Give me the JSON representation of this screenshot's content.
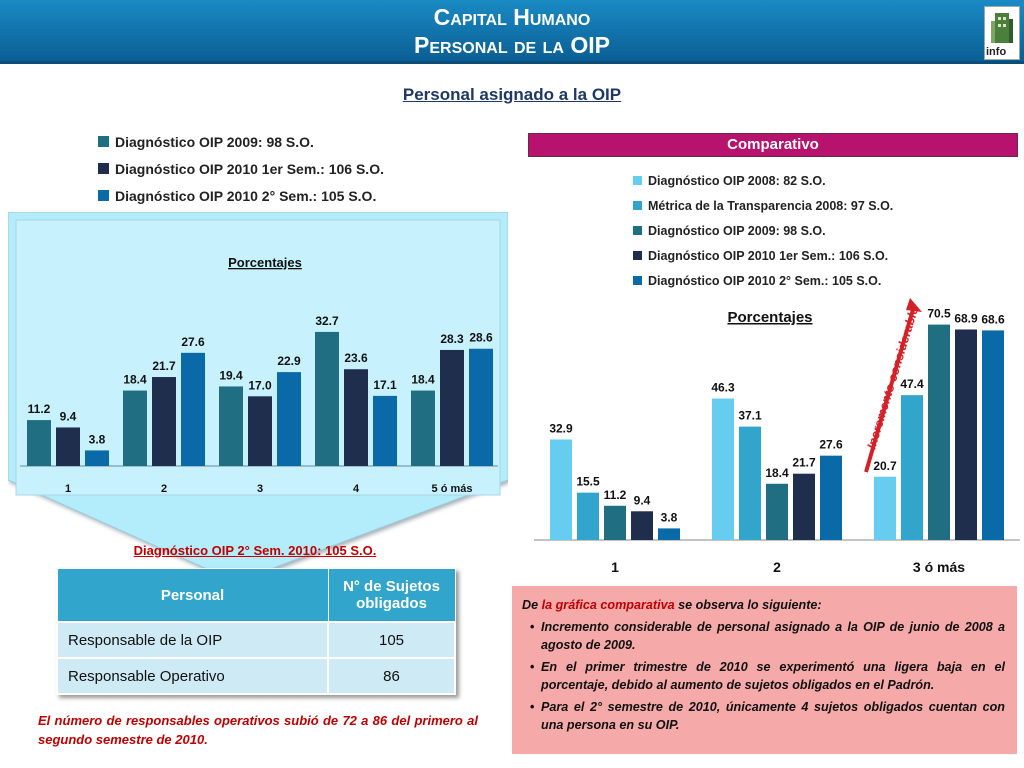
{
  "header": {
    "title_line1": "Capital Humano",
    "title_line2": "Personal de la OIP",
    "logo_text": "info"
  },
  "subtitle": "Personal asignado a la OIP",
  "colors": {
    "c2008": "#66ccf0",
    "metrica2008": "#31a5cc",
    "c2009": "#1f6e82",
    "c2010s1": "#1f2e4d",
    "c2010s2": "#0a6aa8",
    "panel": "#b3ecfb",
    "comparativo": "#b7126e",
    "arrow": "#d42027"
  },
  "left_legend": [
    {
      "label": "Diagnóstico OIP 2009: 98 S.O.",
      "color": "#1f6e82"
    },
    {
      "label": "Diagnóstico OIP 2010 1er Sem.: 106 S.O.",
      "color": "#1f2e4d"
    },
    {
      "label": "Diagnóstico OIP 2010 2° Sem.: 105 S.O.",
      "color": "#0a6aa8"
    }
  ],
  "comparativo_label": "Comparativo",
  "right_legend": [
    {
      "label": "Diagnóstico OIP 2008: 82 S.O.",
      "color": "#66ccf0"
    },
    {
      "label": "Métrica de la Transparencia 2008: 97 S.O.",
      "color": "#31a5cc"
    },
    {
      "label": "Diagnóstico OIP 2009: 98 S.O.",
      "color": "#1f6e82"
    },
    {
      "label": "Diagnóstico OIP 2010 1er Sem.: 106 S.O.",
      "color": "#1f2e4d"
    },
    {
      "label": "Diagnóstico OIP 2010 2° Sem.: 105 S.O.",
      "color": "#0a6aa8"
    }
  ],
  "chart_data": [
    {
      "type": "bar",
      "title": "Porcentajes",
      "categories": [
        "1",
        "2",
        "3",
        "4",
        "5 ó más"
      ],
      "series": [
        {
          "name": "Diagnóstico OIP 2009: 98 S.O.",
          "color": "#1f6e82",
          "values": [
            11.2,
            18.4,
            19.4,
            32.7,
            18.4
          ]
        },
        {
          "name": "Diagnóstico OIP 2010 1er Sem.: 106 S.O.",
          "color": "#1f2e4d",
          "values": [
            9.4,
            21.7,
            17.0,
            23.6,
            28.3
          ]
        },
        {
          "name": "Diagnóstico OIP 2010 2° Sem.: 105 S.O.",
          "color": "#0a6aa8",
          "values": [
            3.8,
            27.6,
            22.9,
            17.1,
            28.6
          ]
        }
      ],
      "ylim": [
        0,
        40
      ],
      "legend": "top"
    },
    {
      "type": "bar",
      "title": "Porcentajes",
      "categories": [
        "1",
        "2",
        "3 ó más"
      ],
      "series": [
        {
          "name": "Diagnóstico OIP 2008: 82 S.O.",
          "color": "#66ccf0",
          "values": [
            32.9,
            46.3,
            20.7
          ]
        },
        {
          "name": "Métrica de la Transparencia 2008: 97 S.O.",
          "color": "#31a5cc",
          "values": [
            15.5,
            37.1,
            47.4
          ]
        },
        {
          "name": "Diagnóstico OIP 2009: 98 S.O.",
          "color": "#1f6e82",
          "values": [
            11.2,
            18.4,
            70.5
          ]
        },
        {
          "name": "Diagnóstico OIP 2010 1er Sem.: 106 S.O.",
          "color": "#1f2e4d",
          "values": [
            9.4,
            21.7,
            68.9
          ]
        },
        {
          "name": "Diagnóstico OIP 2010 2° Sem.: 105 S.O.",
          "color": "#0a6aa8",
          "values": [
            3.8,
            27.6,
            68.6
          ]
        }
      ],
      "ylim": [
        0,
        72
      ],
      "legend": "top",
      "annotation": "Incremento considerable"
    }
  ],
  "table": {
    "caption": "Diagnóstico OIP 2° Sem. 2010: 105 S.O.",
    "headers": [
      "Personal",
      "N° de Sujetos obligados"
    ],
    "rows": [
      [
        "Responsable de la OIP",
        "105"
      ],
      [
        "Responsable Operativo",
        "86"
      ]
    ]
  },
  "bottom_note": "El número de responsables operativos subió de 72 a 86 del primero al segundo semestre de 2010.",
  "notes": {
    "intro_pre": "De ",
    "intro_hl": "la gráfica comparativa",
    "intro_post": " se observa lo siguiente:",
    "bullets": [
      "Incremento considerable de personal asignado a la OIP de junio de 2008 a agosto de 2009.",
      "En el primer trimestre de 2010 se experimentó una ligera baja en el porcentaje, debido al aumento de sujetos obligados en el Padrón.",
      "Para el 2° semestre de 2010, únicamente 4 sujetos obligados cuentan con una persona en su OIP."
    ]
  }
}
